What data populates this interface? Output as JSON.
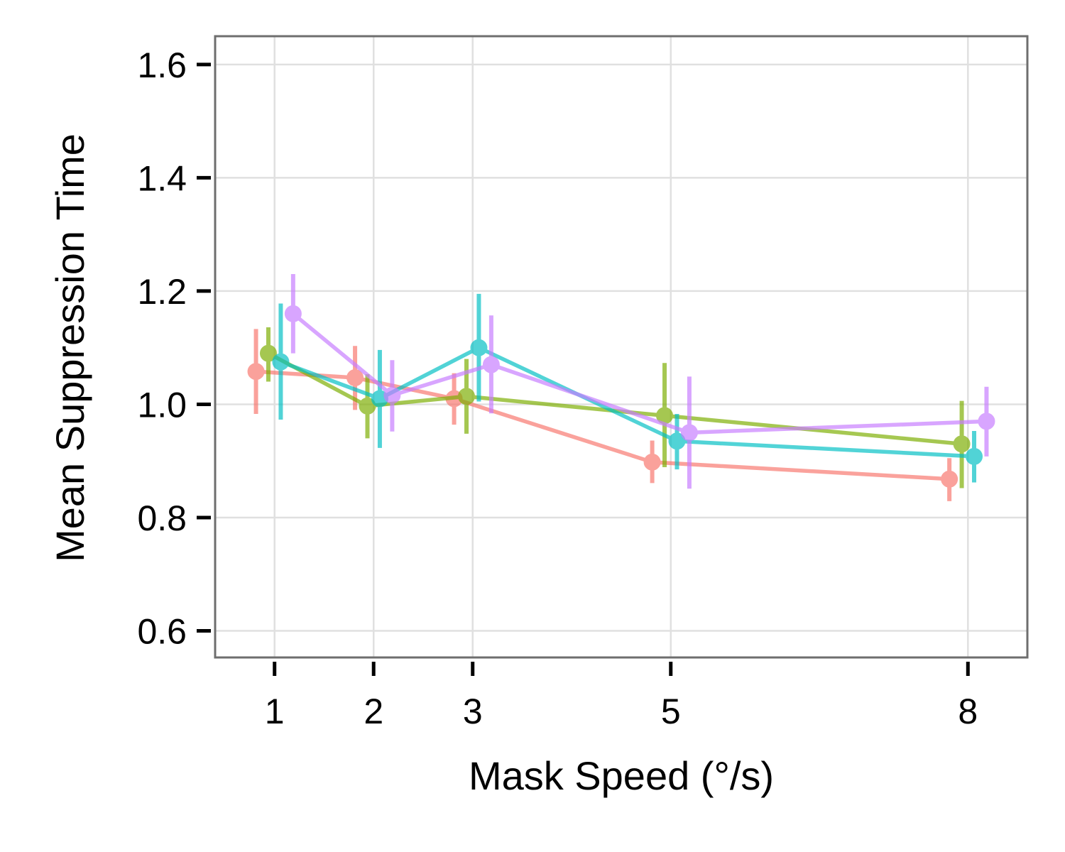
{
  "chart_data": {
    "type": "line",
    "title": "",
    "xlabel": "Mask Speed (°/s)",
    "ylabel": "Mean Suppression Time",
    "x_ticks": [
      1,
      2,
      3,
      5,
      8
    ],
    "y_ticks": [
      "0.6",
      "0.8",
      "1.0",
      "1.2",
      "1.4",
      "1.6"
    ],
    "xlim": [
      0.4,
      8.6
    ],
    "ylim": [
      0.553,
      1.65
    ],
    "grid": true,
    "legend": "none",
    "error_bars": true,
    "series": [
      {
        "color": "#F8766D",
        "points": [
          {
            "x": 1,
            "y": 1.058,
            "lo": 0.983,
            "hi": 1.133
          },
          {
            "x": 2,
            "y": 1.047,
            "lo": 0.99,
            "hi": 1.103
          },
          {
            "x": 3,
            "y": 1.01,
            "lo": 0.964,
            "hi": 1.055
          },
          {
            "x": 5,
            "y": 0.898,
            "lo": 0.861,
            "hi": 0.936
          },
          {
            "x": 8,
            "y": 0.868,
            "lo": 0.829,
            "hi": 0.905
          }
        ]
      },
      {
        "color": "#7CAE00",
        "points": [
          {
            "x": 1,
            "y": 1.09,
            "lo": 1.04,
            "hi": 1.136
          },
          {
            "x": 2,
            "y": 0.997,
            "lo": 0.94,
            "hi": 1.053
          },
          {
            "x": 3,
            "y": 1.014,
            "lo": 0.948,
            "hi": 1.08
          },
          {
            "x": 5,
            "y": 0.98,
            "lo": 0.889,
            "hi": 1.073
          },
          {
            "x": 8,
            "y": 0.93,
            "lo": 0.852,
            "hi": 1.006
          }
        ]
      },
      {
        "color": "#00BFC4",
        "points": [
          {
            "x": 1,
            "y": 1.075,
            "lo": 0.973,
            "hi": 1.178
          },
          {
            "x": 2,
            "y": 1.01,
            "lo": 0.923,
            "hi": 1.096
          },
          {
            "x": 3,
            "y": 1.1,
            "lo": 1.005,
            "hi": 1.195
          },
          {
            "x": 5,
            "y": 0.935,
            "lo": 0.885,
            "hi": 0.983
          },
          {
            "x": 8,
            "y": 0.908,
            "lo": 0.862,
            "hi": 0.953
          }
        ]
      },
      {
        "color": "#C77CFF",
        "points": [
          {
            "x": 1,
            "y": 1.16,
            "lo": 1.09,
            "hi": 1.23
          },
          {
            "x": 2,
            "y": 1.016,
            "lo": 0.952,
            "hi": 1.078
          },
          {
            "x": 3,
            "y": 1.07,
            "lo": 0.984,
            "hi": 1.157
          },
          {
            "x": 5,
            "y": 0.95,
            "lo": 0.851,
            "hi": 1.049
          },
          {
            "x": 8,
            "y": 0.97,
            "lo": 0.908,
            "hi": 1.031
          }
        ]
      }
    ]
  }
}
